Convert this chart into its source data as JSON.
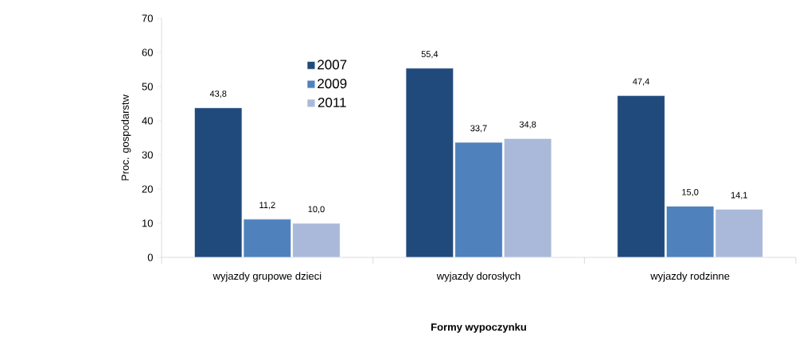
{
  "chart_data": {
    "type": "bar",
    "xlabel": "Formy wypoczynku",
    "ylabel": "Proc. gospodarstw",
    "categories": [
      "wyjazdy grupowe dzieci",
      "wyjazdy dorosłych",
      "wyjazdy rodzinne"
    ],
    "series": [
      {
        "name": "2007",
        "color": "#214a7c",
        "values": [
          43.8,
          55.4,
          47.4
        ],
        "value_labels": [
          "43,8",
          "55,4",
          "47,4"
        ]
      },
      {
        "name": "2009",
        "color": "#4f81bd",
        "values": [
          11.2,
          33.7,
          15.0
        ],
        "value_labels": [
          "11,2",
          "33,7",
          "15,0"
        ]
      },
      {
        "name": "2011",
        "color": "#aab9d9",
        "values": [
          10.0,
          34.8,
          14.1
        ],
        "value_labels": [
          "10,0",
          "34,8",
          "14,1"
        ]
      }
    ],
    "ylim": [
      0,
      70
    ],
    "yticks": [
      0,
      10,
      20,
      30,
      40,
      50,
      60,
      70
    ],
    "grid": false,
    "legend": "top left"
  }
}
